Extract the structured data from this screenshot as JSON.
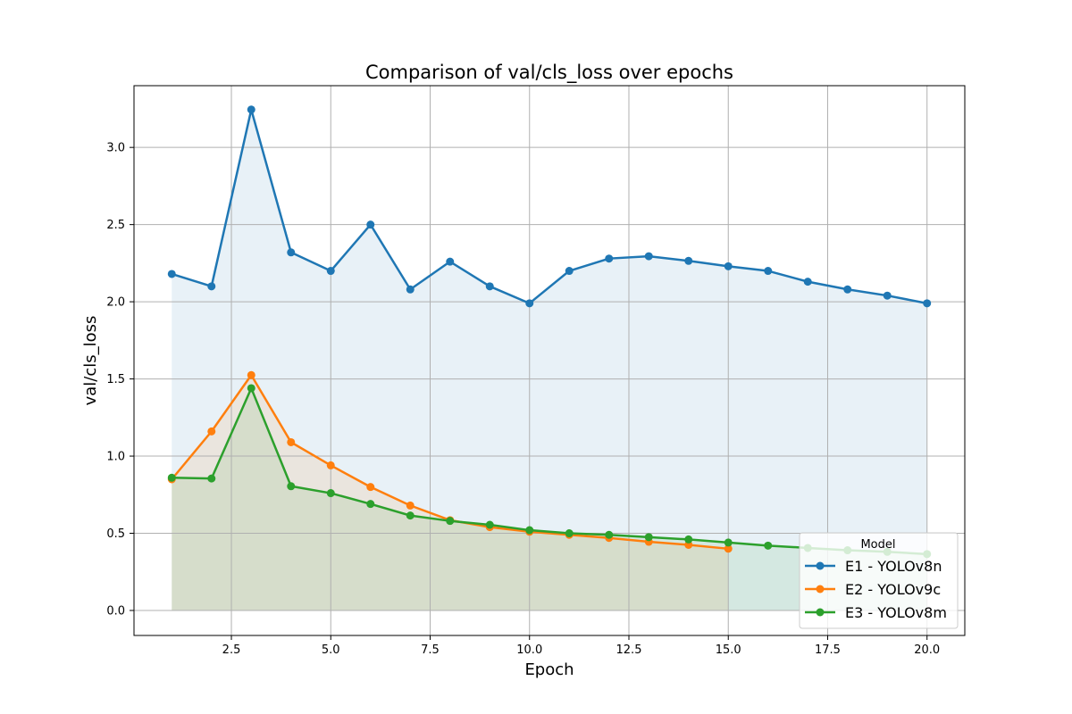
{
  "chart_data": {
    "type": "line",
    "title": "Comparison of val/cls_loss over epochs",
    "xlabel": "Epoch",
    "ylabel": "val/cls_loss",
    "xlim": [
      0.05,
      20.95
    ],
    "ylim": [
      -0.162,
      3.4
    ],
    "xticks": [
      2.5,
      5.0,
      7.5,
      10.0,
      12.5,
      15.0,
      17.5,
      20.0
    ],
    "xtick_labels": [
      "2.5",
      "5.0",
      "7.5",
      "10.0",
      "12.5",
      "15.0",
      "17.5",
      "20.0"
    ],
    "yticks": [
      0.0,
      0.5,
      1.0,
      1.5,
      2.0,
      2.5,
      3.0
    ],
    "ytick_labels": [
      "0.0",
      "0.5",
      "1.0",
      "1.5",
      "2.0",
      "2.5",
      "3.0"
    ],
    "grid": true,
    "area_fill": true,
    "legend": {
      "title": "Model",
      "placement": "lower-right"
    },
    "series": [
      {
        "name": "E1 - YOLOv8n",
        "color": "#1f77b4",
        "x": [
          1,
          2,
          3,
          4,
          5,
          6,
          7,
          8,
          9,
          10,
          11,
          12,
          13,
          14,
          15,
          16,
          17,
          18,
          19,
          20
        ],
        "values": [
          2.18,
          2.1,
          3.245,
          2.32,
          2.2,
          2.5,
          2.08,
          2.26,
          2.1,
          1.99,
          2.2,
          2.28,
          2.295,
          2.265,
          2.23,
          2.2,
          2.13,
          2.08,
          2.04,
          1.99
        ]
      },
      {
        "name": "E2 - YOLOv9c",
        "color": "#ff7f0e",
        "x": [
          1,
          2,
          3,
          4,
          5,
          6,
          7,
          8,
          9,
          10,
          11,
          12,
          13,
          14,
          15
        ],
        "values": [
          0.85,
          1.16,
          1.525,
          1.09,
          0.94,
          0.8,
          0.68,
          0.585,
          0.54,
          0.51,
          0.49,
          0.47,
          0.445,
          0.425,
          0.4
        ]
      },
      {
        "name": "E3 - YOLOv8m",
        "color": "#2ca02c",
        "x": [
          1,
          2,
          3,
          4,
          5,
          6,
          7,
          8,
          9,
          10,
          11,
          12,
          13,
          14,
          15,
          16,
          17,
          18,
          19,
          20
        ],
        "values": [
          0.86,
          0.855,
          1.44,
          0.805,
          0.76,
          0.69,
          0.615,
          0.58,
          0.555,
          0.52,
          0.5,
          0.49,
          0.475,
          0.46,
          0.44,
          0.42,
          0.405,
          0.39,
          0.38,
          0.365
        ]
      }
    ]
  }
}
